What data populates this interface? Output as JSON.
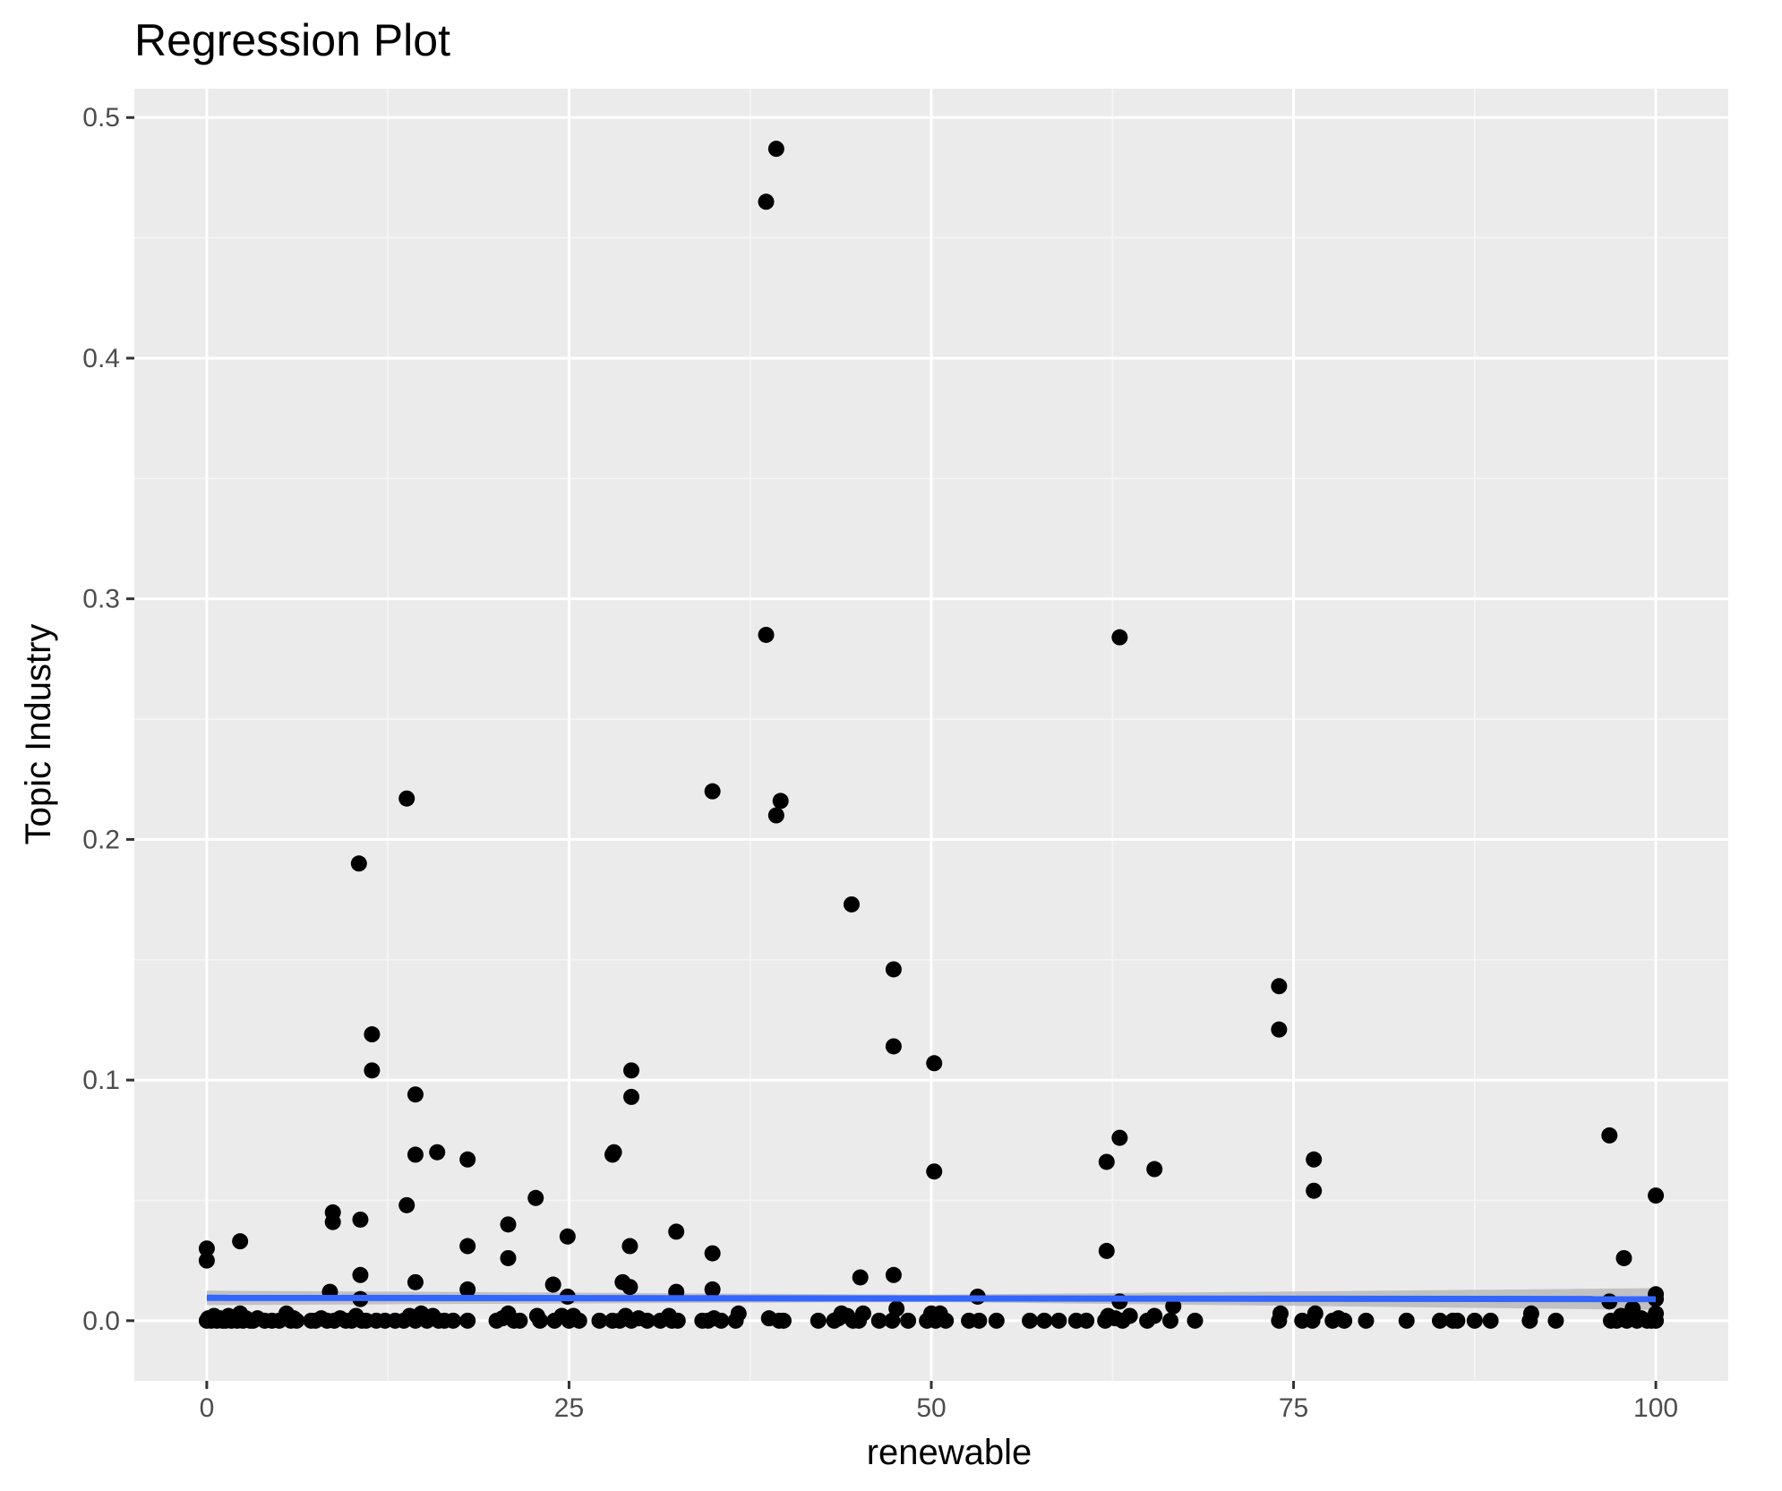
{
  "chart_data": {
    "type": "scatter",
    "title": "Regression Plot",
    "xlabel": "renewable",
    "ylabel": "Topic Industry",
    "xlim": [
      -5,
      105
    ],
    "ylim": [
      -0.025,
      0.512
    ],
    "x_ticks": [
      0,
      25,
      50,
      75,
      100
    ],
    "x_tick_labels": [
      "0",
      "25",
      "50",
      "75",
      "100"
    ],
    "y_ticks": [
      0.0,
      0.1,
      0.2,
      0.3,
      0.4,
      0.5
    ],
    "y_tick_labels": [
      "0.0",
      "0.1",
      "0.2",
      "0.3",
      "0.4",
      "0.5"
    ],
    "grid": true,
    "legend": "none",
    "colors": {
      "panel_background": "#ebebeb",
      "grid_major": "#ffffff",
      "grid_minor": "#f5f5f5",
      "points": "#000000",
      "regression_line": "#3366ff",
      "confidence_band": "#b3b3b3"
    },
    "points": [
      [
        0.0,
        0.03
      ],
      [
        0.0,
        0.025
      ],
      [
        2.3,
        0.033
      ],
      [
        8.7,
        0.045
      ],
      [
        8.7,
        0.041
      ],
      [
        8.5,
        0.012
      ],
      [
        10.5,
        0.19
      ],
      [
        10.6,
        0.042
      ],
      [
        10.6,
        0.019
      ],
      [
        10.6,
        0.009
      ],
      [
        11.4,
        0.119
      ],
      [
        11.4,
        0.104
      ],
      [
        13.8,
        0.217
      ],
      [
        13.8,
        0.048
      ],
      [
        14.4,
        0.094
      ],
      [
        14.4,
        0.069
      ],
      [
        14.4,
        0.016
      ],
      [
        15.9,
        0.07
      ],
      [
        18.0,
        0.067
      ],
      [
        18.0,
        0.031
      ],
      [
        18.0,
        0.013
      ],
      [
        20.8,
        0.04
      ],
      [
        20.8,
        0.026
      ],
      [
        22.7,
        0.051
      ],
      [
        23.9,
        0.015
      ],
      [
        24.9,
        0.035
      ],
      [
        24.9,
        0.01
      ],
      [
        28.0,
        0.069
      ],
      [
        28.1,
        0.07
      ],
      [
        28.7,
        0.016
      ],
      [
        29.3,
        0.104
      ],
      [
        29.3,
        0.093
      ],
      [
        29.2,
        0.031
      ],
      [
        29.2,
        0.014
      ],
      [
        32.4,
        0.037
      ],
      [
        32.4,
        0.012
      ],
      [
        34.9,
        0.22
      ],
      [
        34.9,
        0.028
      ],
      [
        34.9,
        0.013
      ],
      [
        38.6,
        0.465
      ],
      [
        38.6,
        0.285
      ],
      [
        39.3,
        0.487
      ],
      [
        39.3,
        0.21
      ],
      [
        39.6,
        0.216
      ],
      [
        44.5,
        0.173
      ],
      [
        45.1,
        0.018
      ],
      [
        47.4,
        0.146
      ],
      [
        47.4,
        0.114
      ],
      [
        47.4,
        0.019
      ],
      [
        50.2,
        0.107
      ],
      [
        50.2,
        0.062
      ],
      [
        53.2,
        0.01
      ],
      [
        62.1,
        0.066
      ],
      [
        62.1,
        0.029
      ],
      [
        63.0,
        0.284
      ],
      [
        63.0,
        0.076
      ],
      [
        63.0,
        0.008
      ],
      [
        65.4,
        0.063
      ],
      [
        74.0,
        0.139
      ],
      [
        74.0,
        0.121
      ],
      [
        76.4,
        0.067
      ],
      [
        76.4,
        0.054
      ],
      [
        96.8,
        0.077
      ],
      [
        96.8,
        0.008
      ],
      [
        97.8,
        0.026
      ],
      [
        100.0,
        0.052
      ],
      [
        100.0,
        0.011
      ],
      [
        100.0,
        0.009
      ],
      [
        0.0,
        0.0
      ],
      [
        0.1,
        0.001
      ],
      [
        0.3,
        0.0
      ],
      [
        0.5,
        0.002
      ],
      [
        0.7,
        0.0
      ],
      [
        0.9,
        0.001
      ],
      [
        1.1,
        0.0
      ],
      [
        1.3,
        0.0
      ],
      [
        1.5,
        0.002
      ],
      [
        1.7,
        0.0
      ],
      [
        1.9,
        0.001
      ],
      [
        2.1,
        0.0
      ],
      [
        2.3,
        0.003
      ],
      [
        2.5,
        0.0
      ],
      [
        2.7,
        0.001
      ],
      [
        3.0,
        0.0
      ],
      [
        3.2,
        0.0
      ],
      [
        3.5,
        0.001
      ],
      [
        4.0,
        0.0
      ],
      [
        4.5,
        0.0
      ],
      [
        5.0,
        0.0
      ],
      [
        5.5,
        0.003
      ],
      [
        5.8,
        0.0
      ],
      [
        6.0,
        0.001
      ],
      [
        6.2,
        0.0
      ],
      [
        7.2,
        0.0
      ],
      [
        7.5,
        0.0
      ],
      [
        7.9,
        0.001
      ],
      [
        8.3,
        0.0
      ],
      [
        8.8,
        0.0
      ],
      [
        9.2,
        0.001
      ],
      [
        9.6,
        0.0
      ],
      [
        10.0,
        0.0
      ],
      [
        10.3,
        0.002
      ],
      [
        10.7,
        0.0
      ],
      [
        11.0,
        0.0
      ],
      [
        11.7,
        0.0
      ],
      [
        12.3,
        0.0
      ],
      [
        13.0,
        0.0
      ],
      [
        13.6,
        0.0
      ],
      [
        14.0,
        0.002
      ],
      [
        14.4,
        0.0
      ],
      [
        14.8,
        0.003
      ],
      [
        15.2,
        0.0
      ],
      [
        15.6,
        0.002
      ],
      [
        16.0,
        0.0
      ],
      [
        16.4,
        0.0
      ],
      [
        17.0,
        0.0
      ],
      [
        18.0,
        0.0
      ],
      [
        20.0,
        0.0
      ],
      [
        20.4,
        0.001
      ],
      [
        20.8,
        0.003
      ],
      [
        21.2,
        0.0
      ],
      [
        21.6,
        0.0
      ],
      [
        22.8,
        0.002
      ],
      [
        23.0,
        0.0
      ],
      [
        24.0,
        0.0
      ],
      [
        24.5,
        0.002
      ],
      [
        25.0,
        0.0
      ],
      [
        25.3,
        0.002
      ],
      [
        25.7,
        0.0
      ],
      [
        27.1,
        0.0
      ],
      [
        28.0,
        0.0
      ],
      [
        28.5,
        0.0
      ],
      [
        28.9,
        0.002
      ],
      [
        29.3,
        0.0
      ],
      [
        29.8,
        0.001
      ],
      [
        30.4,
        0.0
      ],
      [
        31.3,
        0.0
      ],
      [
        31.9,
        0.002
      ],
      [
        32.1,
        0.0
      ],
      [
        32.5,
        0.0
      ],
      [
        34.2,
        0.0
      ],
      [
        34.6,
        0.0
      ],
      [
        35.0,
        0.001
      ],
      [
        35.5,
        0.0
      ],
      [
        36.5,
        0.0
      ],
      [
        36.7,
        0.003
      ],
      [
        38.8,
        0.001
      ],
      [
        39.5,
        0.0
      ],
      [
        39.8,
        0.0
      ],
      [
        42.2,
        0.0
      ],
      [
        43.3,
        0.0
      ],
      [
        43.6,
        0.001
      ],
      [
        43.8,
        0.003
      ],
      [
        44.2,
        0.002
      ],
      [
        44.6,
        0.0
      ],
      [
        45.0,
        0.0
      ],
      [
        45.3,
        0.003
      ],
      [
        46.4,
        0.0
      ],
      [
        47.3,
        0.0
      ],
      [
        47.6,
        0.005
      ],
      [
        48.4,
        0.0
      ],
      [
        49.7,
        0.0
      ],
      [
        50.0,
        0.003
      ],
      [
        50.3,
        0.0
      ],
      [
        50.6,
        0.003
      ],
      [
        51.0,
        0.0
      ],
      [
        52.6,
        0.0
      ],
      [
        53.3,
        0.0
      ],
      [
        54.5,
        0.0
      ],
      [
        56.8,
        0.0
      ],
      [
        57.8,
        0.0
      ],
      [
        58.8,
        0.0
      ],
      [
        60.0,
        0.0
      ],
      [
        60.7,
        0.0
      ],
      [
        62.0,
        0.0
      ],
      [
        62.2,
        0.002
      ],
      [
        62.7,
        0.001
      ],
      [
        63.2,
        0.0
      ],
      [
        63.7,
        0.002
      ],
      [
        64.9,
        0.0
      ],
      [
        65.4,
        0.002
      ],
      [
        66.5,
        0.0
      ],
      [
        66.7,
        0.006
      ],
      [
        68.2,
        0.0
      ],
      [
        74.0,
        0.0
      ],
      [
        74.1,
        0.003
      ],
      [
        75.6,
        0.0
      ],
      [
        76.3,
        0.0
      ],
      [
        76.5,
        0.003
      ],
      [
        77.7,
        0.0
      ],
      [
        78.1,
        0.001
      ],
      [
        78.5,
        0.0
      ],
      [
        80.0,
        0.0
      ],
      [
        82.8,
        0.0
      ],
      [
        85.1,
        0.0
      ],
      [
        86.0,
        0.0
      ],
      [
        86.3,
        0.0
      ],
      [
        87.5,
        0.0
      ],
      [
        88.6,
        0.0
      ],
      [
        91.3,
        0.0
      ],
      [
        91.4,
        0.003
      ],
      [
        93.1,
        0.0
      ],
      [
        96.9,
        0.0
      ],
      [
        97.3,
        0.0
      ],
      [
        97.6,
        0.002
      ],
      [
        98.0,
        0.0
      ],
      [
        98.4,
        0.005
      ],
      [
        98.7,
        0.0
      ],
      [
        99.0,
        0.001
      ],
      [
        99.4,
        0.0
      ],
      [
        99.7,
        0.0
      ],
      [
        100.0,
        0.003
      ],
      [
        100.0,
        0.0
      ]
    ],
    "regression_line": {
      "x": [
        0,
        100
      ],
      "y": [
        0.0095,
        0.009
      ]
    },
    "confidence_band": {
      "x": [
        0,
        50,
        100
      ],
      "lower": [
        0.0065,
        0.0078,
        0.0045
      ],
      "upper": [
        0.0125,
        0.0108,
        0.0135
      ]
    }
  }
}
